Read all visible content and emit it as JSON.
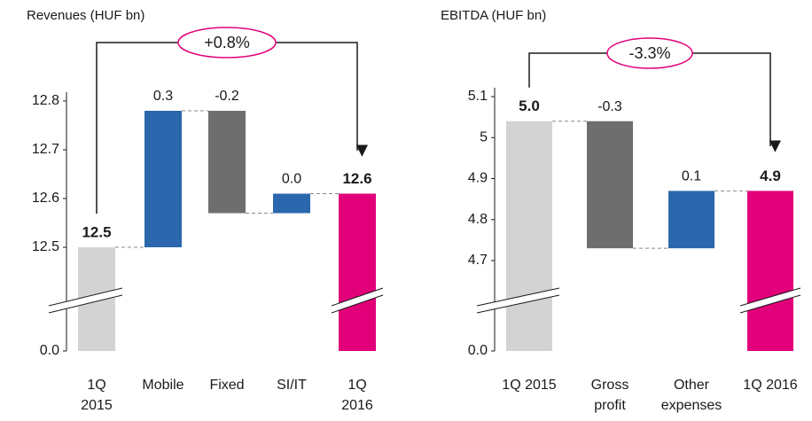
{
  "chart_data": [
    {
      "type": "waterfall",
      "title": "Revenues (HUF bn)",
      "categories": [
        "1Q\n2015",
        "Mobile",
        "Fixed",
        "SI/IT",
        "1Q\n2016"
      ],
      "values": [
        12.5,
        0.28,
        -0.21,
        0.04,
        12.61
      ],
      "value_labels": [
        "12.5",
        "0.3",
        "-0.2",
        "0.0",
        "12.6"
      ],
      "colors": [
        "#d3d3d3",
        "#2b67ac",
        "#6e6e6e",
        "#2b67ac",
        "#e2007a"
      ],
      "ylim": [
        0,
        12.8
      ],
      "yticks": [
        {
          "value": 0,
          "label": "0.0"
        },
        12.5,
        12.6,
        12.7,
        12.8
      ],
      "axis_break": true,
      "annotation": "+0.8%"
    },
    {
      "type": "waterfall",
      "title": "EBITDA (HUF bn)",
      "categories": [
        "1Q 2015",
        "Gross\nprofit",
        "Other\nexpenses",
        "1Q 2016"
      ],
      "values": [
        5.04,
        -0.31,
        0.14,
        4.87
      ],
      "value_labels": [
        "5.0",
        "-0.3",
        "0.1",
        "4.9"
      ],
      "colors": [
        "#d3d3d3",
        "#6e6e6e",
        "#2b67ac",
        "#e2007a"
      ],
      "ylim": [
        0,
        5.1
      ],
      "yticks": [
        {
          "value": 0,
          "label": "0.0"
        },
        4.7,
        4.8,
        4.9,
        5.0,
        5.1
      ],
      "axis_break": true,
      "annotation": "-3.3%"
    }
  ]
}
